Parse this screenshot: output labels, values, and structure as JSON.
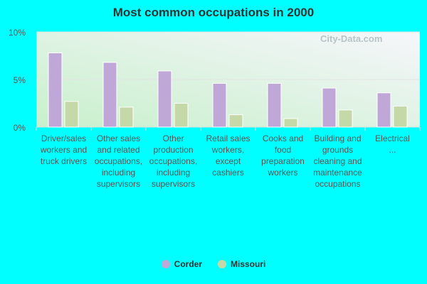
{
  "chart_data": {
    "type": "bar",
    "title": "Most common occupations in 2000",
    "categories": [
      "Driver/sales workers and truck drivers",
      "Other sales and related occupations, including supervisors",
      "Other production occupations, including supervisors",
      "Retail sales workers, except cashiers",
      "Cooks and food preparation workers",
      "Building and grounds cleaning and maintenance occupations",
      "Electrical ..."
    ],
    "series": [
      {
        "name": "Corder",
        "color": "#bfa8d8",
        "values": [
          7.8,
          6.8,
          5.9,
          4.6,
          4.6,
          4.1,
          3.6
        ]
      },
      {
        "name": "Missouri",
        "color": "#c5d8a8",
        "values": [
          2.7,
          2.1,
          2.5,
          1.3,
          0.9,
          1.8,
          2.2
        ]
      }
    ],
    "ylim": [
      0,
      10
    ],
    "yticks": [
      "0%",
      "5%",
      "10%"
    ],
    "grid": true,
    "legend": "bottom",
    "watermark": "City-Data.com"
  }
}
